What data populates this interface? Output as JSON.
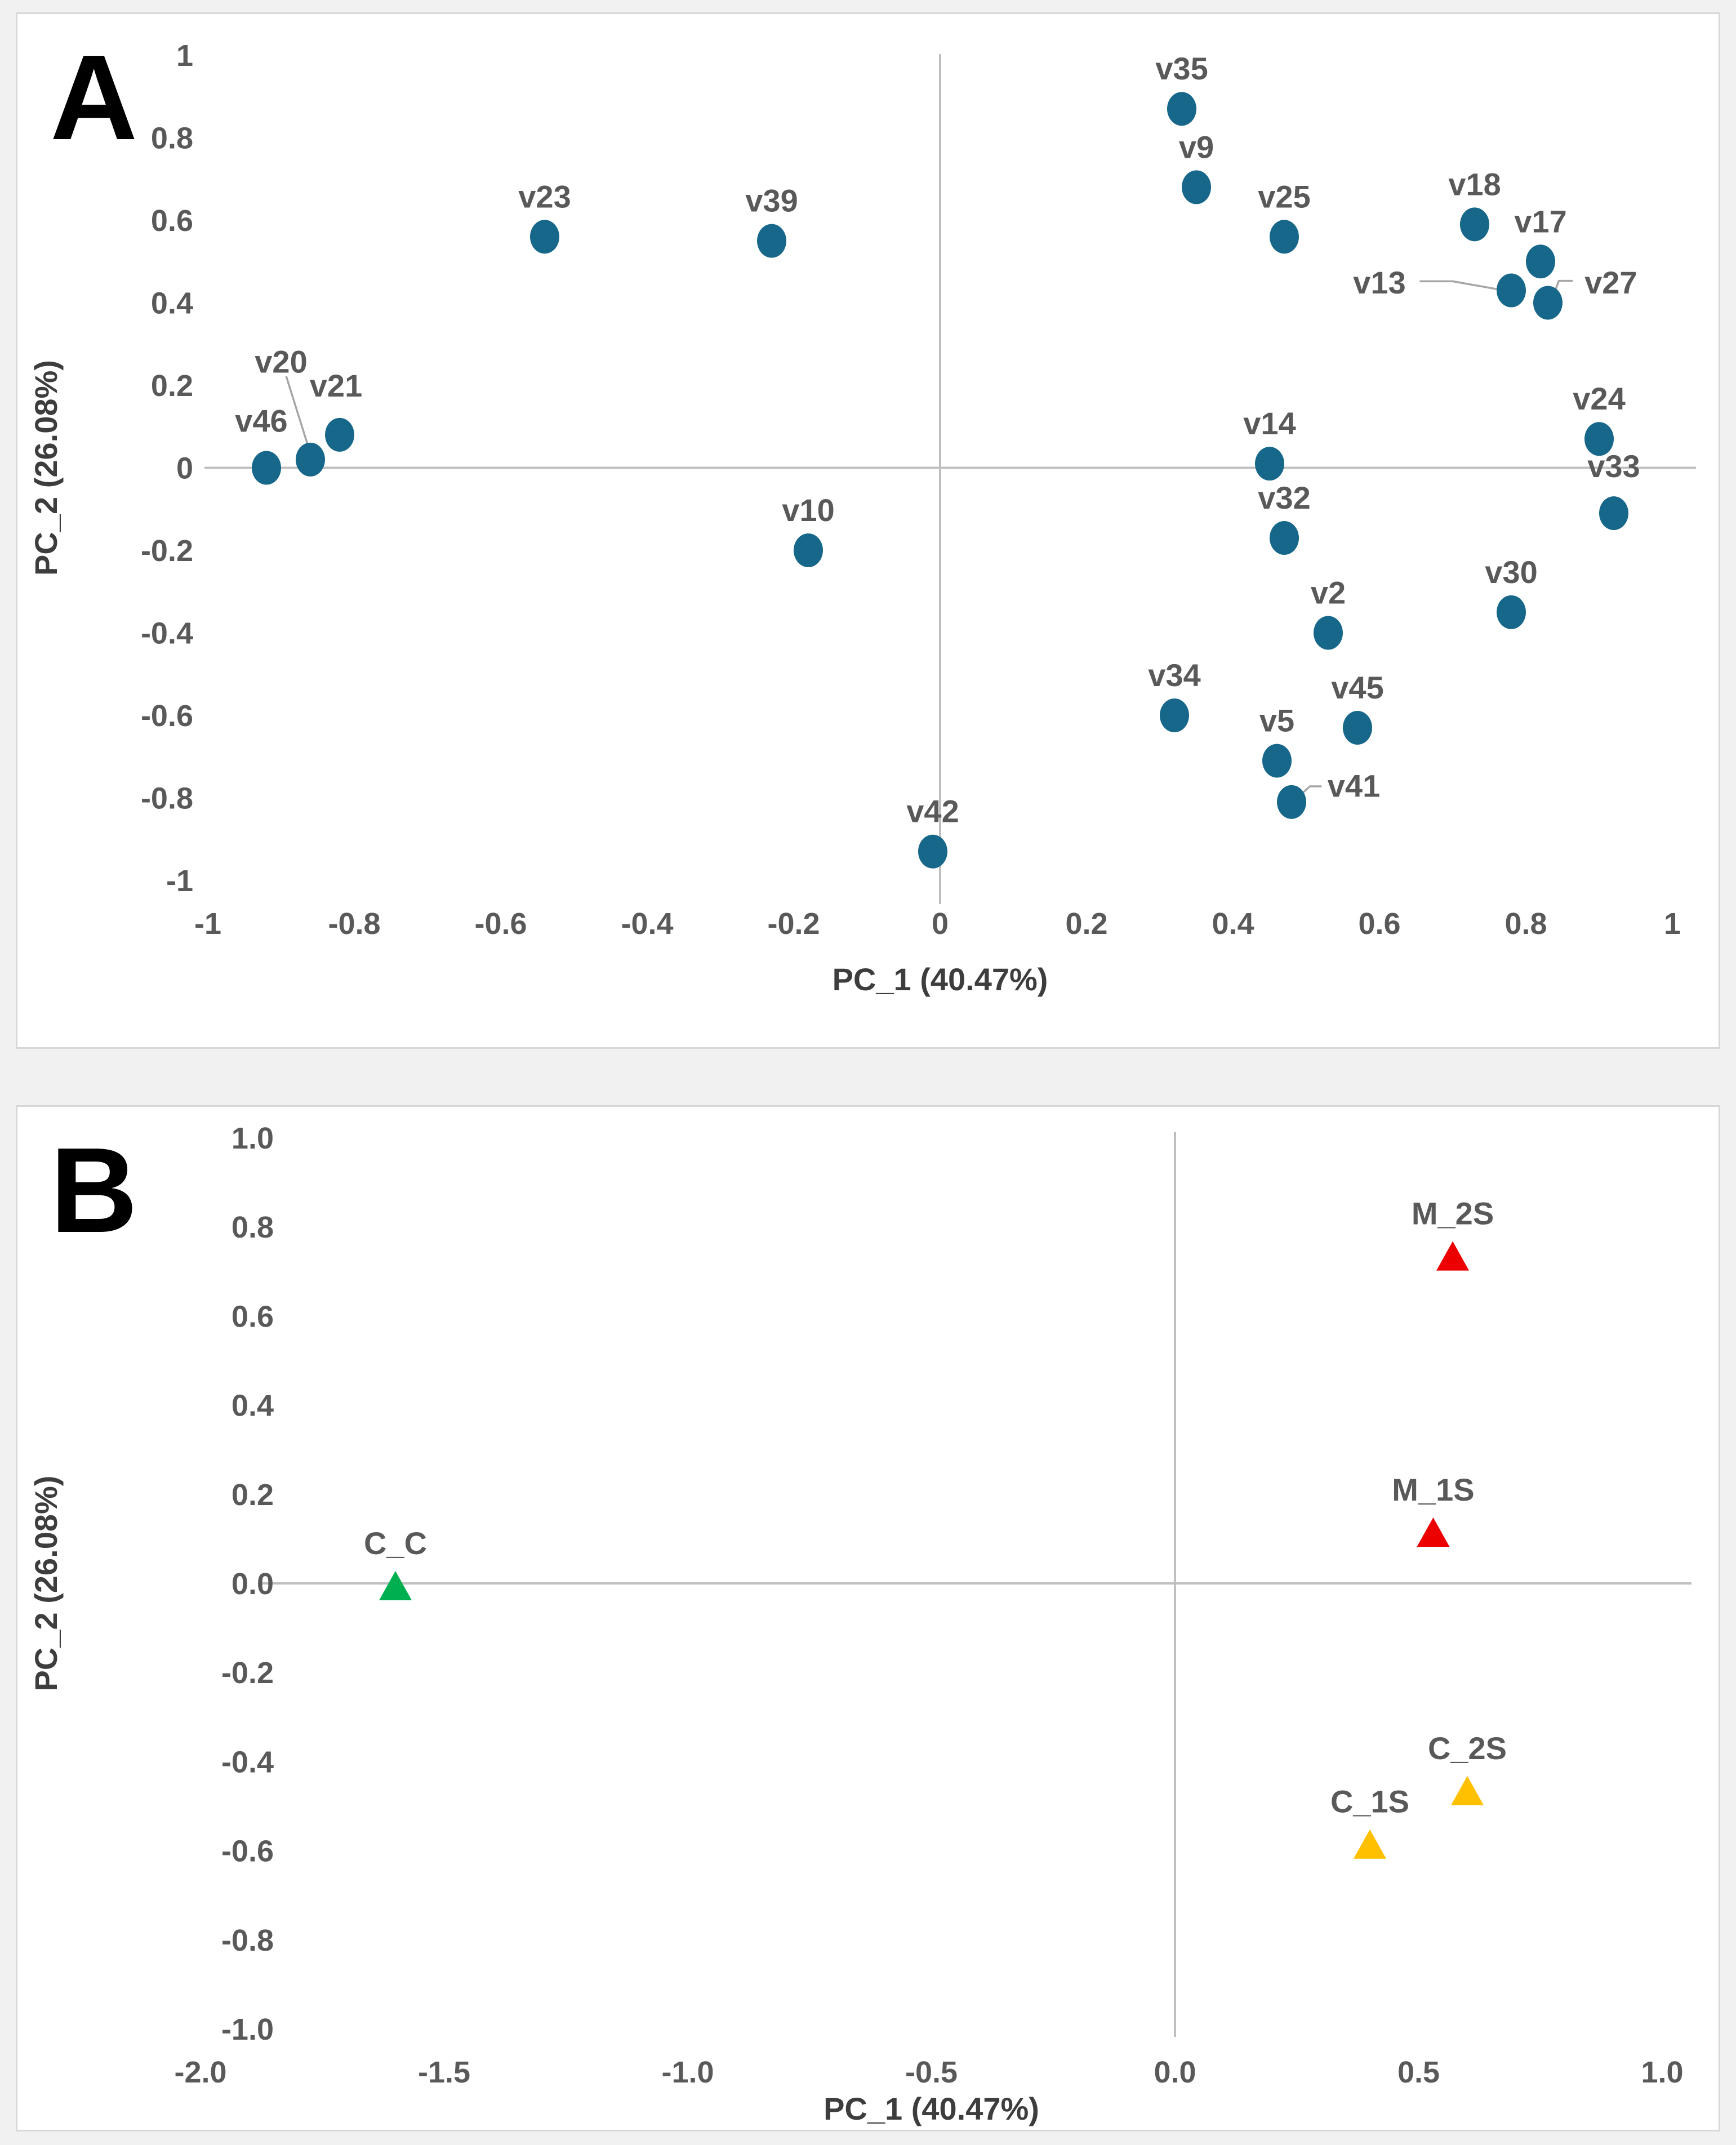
{
  "page": {
    "background": "#f1f1f2",
    "panel_background": "#ffffff",
    "panel_border": "#d7d7d9",
    "axis_line_color": "#bfbfbf",
    "leader_line_color": "#a6a6a6",
    "tick_text_color": "#595959",
    "label_text_color": "#595959",
    "axis_title_color": "#3d3d3d"
  },
  "chart_data": [
    {
      "id": "A",
      "panel_letter": "A",
      "type": "scatter",
      "title": "",
      "xlabel": "PC_1 (40.47%)",
      "ylabel": "PC_2 (26.08%)",
      "xlim": [
        -1,
        1
      ],
      "ylim": [
        -1,
        1
      ],
      "gridlines": false,
      "legend_position": "none",
      "marker": "circle",
      "marker_color": "#16678a",
      "x_ticks": [
        -1,
        -0.8,
        -0.6,
        -0.4,
        -0.2,
        0,
        0.2,
        0.4,
        0.6,
        0.8,
        1
      ],
      "x_tick_labels": [
        "-1",
        "-0.8",
        "-0.6",
        "-0.4",
        "-0.2",
        "0",
        "0.2",
        "0.4",
        "0.6",
        "0.8",
        "1"
      ],
      "y_ticks": [
        1,
        0.8,
        0.6,
        0.4,
        0.2,
        0,
        -0.2,
        -0.4,
        -0.6,
        -0.8,
        -1
      ],
      "y_tick_labels": [
        "1",
        "0.8",
        "0.6",
        "0.4",
        "0.2",
        "0",
        "-0.2",
        "-0.4",
        "-0.6",
        "-0.8",
        "-1"
      ],
      "points": [
        {
          "label": "v35",
          "x": 0.33,
          "y": 0.87
        },
        {
          "label": "v9",
          "x": 0.35,
          "y": 0.68
        },
        {
          "label": "v25",
          "x": 0.47,
          "y": 0.56
        },
        {
          "label": "v18",
          "x": 0.73,
          "y": 0.59
        },
        {
          "label": "v17",
          "x": 0.82,
          "y": 0.5
        },
        {
          "label": "v13",
          "x": 0.78,
          "y": 0.43,
          "lx": 0.6,
          "ly": 0.45,
          "leader": [
            [
              0.655,
              0.452
            ],
            [
              0.7,
              0.452
            ],
            [
              0.764,
              0.432
            ]
          ]
        },
        {
          "label": "v27",
          "x": 0.83,
          "y": 0.4,
          "lx": 0.916,
          "ly": 0.45,
          "leader": [
            [
              0.864,
              0.453
            ],
            [
              0.845,
              0.453
            ],
            [
              0.837,
              0.415
            ]
          ]
        },
        {
          "label": "v23",
          "x": -0.54,
          "y": 0.56
        },
        {
          "label": "v39",
          "x": -0.23,
          "y": 0.55
        },
        {
          "label": "v20",
          "x": -0.86,
          "y": 0.02,
          "lx": -0.9,
          "ly": 0.258,
          "leader": [
            [
              -0.893,
              0.222
            ],
            [
              -0.863,
              0.052
            ]
          ]
        },
        {
          "label": "v21",
          "x": -0.82,
          "y": 0.08,
          "lx": -0.825,
          "ly": 0.2
        },
        {
          "label": "v46",
          "x": -0.92,
          "y": 0.0,
          "lx": -0.927,
          "ly": 0.115
        },
        {
          "label": "v14",
          "x": 0.45,
          "y": 0.01
        },
        {
          "label": "v32",
          "x": 0.47,
          "y": -0.17
        },
        {
          "label": "v2",
          "x": 0.53,
          "y": -0.4
        },
        {
          "label": "v24",
          "x": 0.9,
          "y": 0.07
        },
        {
          "label": "v33",
          "x": 0.92,
          "y": -0.11,
          "lx": 0.92,
          "ly": 0.005
        },
        {
          "label": "v30",
          "x": 0.78,
          "y": -0.35
        },
        {
          "label": "v34",
          "x": 0.32,
          "y": -0.6
        },
        {
          "label": "v45",
          "x": 0.57,
          "y": -0.63
        },
        {
          "label": "v5",
          "x": 0.46,
          "y": -0.71
        },
        {
          "label": "v41",
          "x": 0.48,
          "y": -0.81,
          "lx": 0.565,
          "ly": -0.77,
          "leader": [
            [
              0.521,
              -0.772
            ],
            [
              0.505,
              -0.772
            ],
            [
              0.489,
              -0.798
            ]
          ]
        },
        {
          "label": "v42",
          "x": -0.01,
          "y": -0.93
        },
        {
          "label": "v10",
          "x": -0.18,
          "y": -0.2
        }
      ]
    },
    {
      "id": "B",
      "panel_letter": "B",
      "type": "scatter",
      "title": "",
      "xlabel": "PC_1 (40.47%)",
      "ylabel": "PC_2 (26.08%)",
      "xlim": [
        -2,
        1
      ],
      "ylim": [
        -1,
        1
      ],
      "gridlines": false,
      "legend_position": "none",
      "marker": "triangle",
      "x_ticks": [
        -2,
        -1.5,
        -1,
        -0.5,
        0,
        0.5,
        1
      ],
      "x_tick_labels": [
        "-2.0",
        "-1.5",
        "-1.0",
        "-0.5",
        "0.0",
        "0.5",
        "1.0"
      ],
      "y_ticks": [
        1,
        0.8,
        0.6,
        0.4,
        0.2,
        0,
        -0.2,
        -0.4,
        -0.6,
        -0.8,
        -1
      ],
      "y_tick_labels": [
        "1.0",
        "0.8",
        "0.6",
        "0.4",
        "0.2",
        "0.0",
        "-0.2",
        "-0.4",
        "-0.6",
        "-0.8",
        "-1.0"
      ],
      "colors": {
        "control": "#00b050",
        "mulch": "#ec0000",
        "cover": "#ffc000"
      },
      "points": [
        {
          "label": "C_C",
          "x": -1.6,
          "y": -0.01,
          "color": "#00b050"
        },
        {
          "label": "M_2S",
          "x": 0.57,
          "y": 0.73,
          "color": "#ec0000"
        },
        {
          "label": "M_1S",
          "x": 0.53,
          "y": 0.11,
          "color": "#ec0000"
        },
        {
          "label": "C_1S",
          "x": 0.4,
          "y": -0.59,
          "color": "#ffc000"
        },
        {
          "label": "C_2S",
          "x": 0.6,
          "y": -0.47,
          "color": "#ffc000"
        }
      ]
    }
  ]
}
